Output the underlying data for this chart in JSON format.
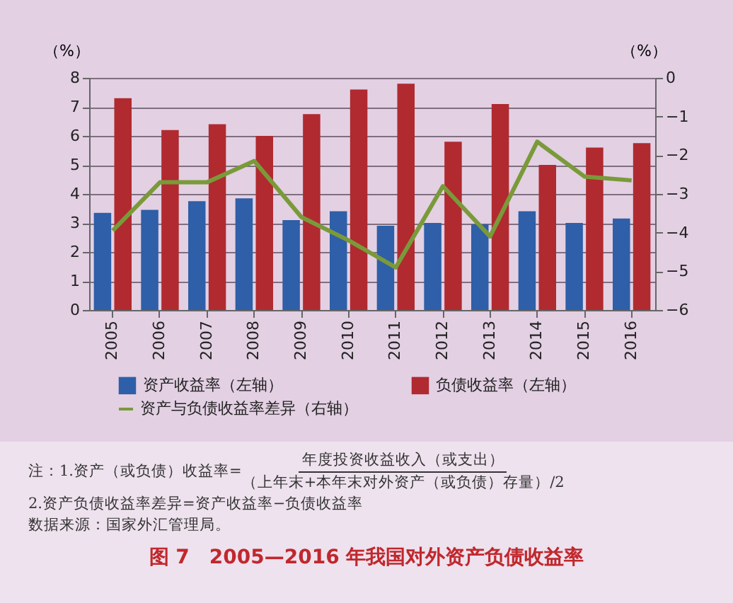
{
  "chart_data": {
    "type": "bar",
    "title": "图 7　2005—2016 年我国对外资产负债收益率",
    "ylabel": "（%）",
    "y2label": "（%）",
    "categories": [
      "2005",
      "2006",
      "2007",
      "2008",
      "2009",
      "2010",
      "2011",
      "2012",
      "2013",
      "2014",
      "2015",
      "2016"
    ],
    "series": [
      {
        "name": "资产收益率（左轴）",
        "color": "#2e5fa8",
        "values": [
          3.35,
          3.45,
          3.75,
          3.85,
          3.1,
          3.4,
          2.9,
          3.0,
          2.95,
          3.4,
          3.0,
          3.15
        ]
      },
      {
        "name": "负债收益率（左轴）",
        "color": "#b02a30",
        "values": [
          7.3,
          6.2,
          6.4,
          6.0,
          6.75,
          7.6,
          7.8,
          5.8,
          7.1,
          5.0,
          5.6,
          5.75
        ]
      },
      {
        "name": "资产与负债收益率差异（右轴）",
        "color": "#7a9a3a",
        "type": "line",
        "axis": "y2",
        "values": [
          -3.95,
          -2.7,
          -2.7,
          -2.15,
          -3.6,
          -4.2,
          -4.9,
          -2.8,
          -4.1,
          -1.65,
          -2.55,
          -2.65
        ]
      }
    ],
    "ylim": [
      0,
      8
    ],
    "yticks": [
      0,
      1,
      2,
      3,
      4,
      5,
      6,
      7,
      8
    ],
    "y2lim": [
      -6,
      0
    ],
    "y2ticks": [
      -6,
      -5,
      -4,
      -3,
      -2,
      -1,
      0
    ],
    "grid": "y",
    "legend": "bottom",
    "marker": "none",
    "line_style": "solid",
    "annotations": [
      "注：1.资产（或负债）收益率=",
      "年度投资收益收入（或支出）",
      "（上年末+本年末对外资产（或负债）存量）/2",
      "2.资产负债收益率差异=资产收益率−负债收益率",
      "数据来源：国家外汇管理局。"
    ]
  }
}
